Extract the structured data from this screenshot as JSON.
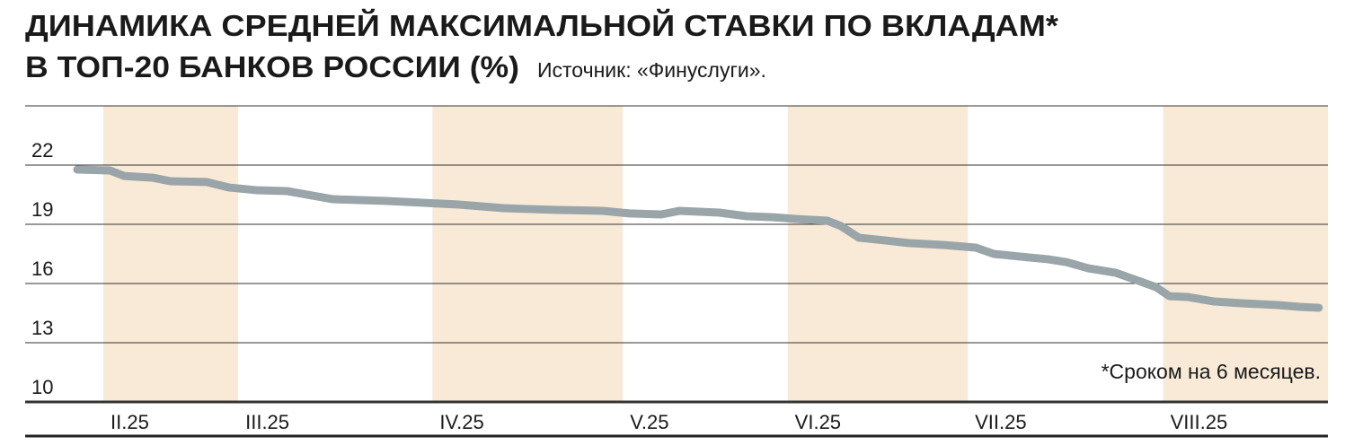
{
  "chart_data": {
    "type": "line",
    "title": [
      "ДИНАМИКА СРЕДНЕЙ МАКСИМАЛЬНОЙ СТАВКИ ПО ВКЛАДАМ*",
      "В ТОП-20 БАНКОВ РОССИИ (%)"
    ],
    "source": "Источник: «Финуслуги».",
    "note": "*Сроком на 6 месяцев.",
    "x": [
      1.36,
      2.21,
      2.58,
      3.33,
      3.8,
      4.74,
      5.33,
      6.03,
      6.85,
      8.03,
      9.44,
      10.38,
      11.31,
      12.49,
      13.19,
      13.9,
      15.07,
      15.77,
      16.6,
      17.07,
      18.12,
      18.83,
      19.53,
      20.12,
      20.94,
      21.29,
      21.76,
      22.46,
      23.05,
      23.99,
      24.81,
      25.28,
      25.99,
      26.69,
      27.16,
      27.75,
      28.45,
      28.92,
      29.51,
      29.86,
      30.33,
      31.03,
      31.74,
      32.68,
      33.26,
      33.76
    ],
    "series": [
      {
        "color": "#9aa5aa",
        "values": [
          21.77,
          21.73,
          21.45,
          21.36,
          21.18,
          21.14,
          20.86,
          20.73,
          20.68,
          20.27,
          20.18,
          20.09,
          20.0,
          19.82,
          19.77,
          19.73,
          19.68,
          19.55,
          19.5,
          19.68,
          19.59,
          19.41,
          19.36,
          19.27,
          19.18,
          18.91,
          18.32,
          18.18,
          18.05,
          17.95,
          17.82,
          17.5,
          17.36,
          17.23,
          17.09,
          16.77,
          16.55,
          16.23,
          15.82,
          15.36,
          15.32,
          15.09,
          15.0,
          14.91,
          14.82,
          14.77
        ]
      }
    ],
    "xlim": [
      0,
      34
    ],
    "xticks": [
      {
        "value": 2.04,
        "label": "II.25"
      },
      {
        "value": 5.56,
        "label": "III.25"
      },
      {
        "value": 10.63,
        "label": "IV.25"
      },
      {
        "value": 15.6,
        "label": "V.25"
      },
      {
        "value": 19.9,
        "label": "VI.25"
      },
      {
        "value": 24.6,
        "label": "VII.25"
      },
      {
        "value": 29.7,
        "label": "VIII.25"
      }
    ],
    "ylim": [
      10,
      25
    ],
    "yticks": [
      10,
      13,
      16,
      19,
      22
    ],
    "grid": true,
    "band_color": "#f8ead6"
  }
}
